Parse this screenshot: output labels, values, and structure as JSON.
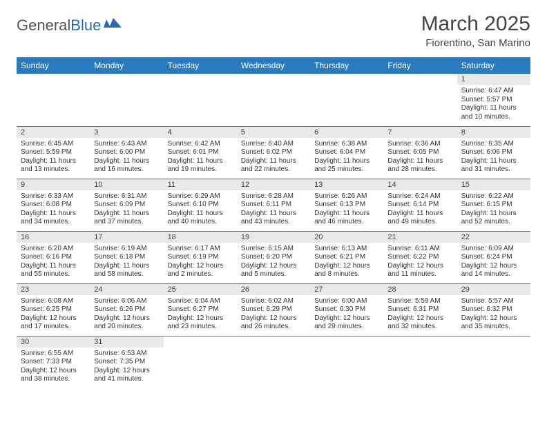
{
  "logo": {
    "text1": "General",
    "text2": "Blue"
  },
  "title": "March 2025",
  "location": "Fiorentino, San Marino",
  "colors": {
    "header_bg": "#2a7ac0",
    "header_text": "#ffffff",
    "daynum_bg": "#e8e8e8",
    "border": "#2a7ac0",
    "logo_blue": "#2a6cb4",
    "logo_gray": "#555555"
  },
  "weekdays": [
    "Sunday",
    "Monday",
    "Tuesday",
    "Wednesday",
    "Thursday",
    "Friday",
    "Saturday"
  ],
  "weeks": [
    [
      null,
      null,
      null,
      null,
      null,
      null,
      {
        "n": "1",
        "sr": "Sunrise: 6:47 AM",
        "ss": "Sunset: 5:57 PM",
        "dl": "Daylight: 11 hours and 10 minutes."
      }
    ],
    [
      {
        "n": "2",
        "sr": "Sunrise: 6:45 AM",
        "ss": "Sunset: 5:59 PM",
        "dl": "Daylight: 11 hours and 13 minutes."
      },
      {
        "n": "3",
        "sr": "Sunrise: 6:43 AM",
        "ss": "Sunset: 6:00 PM",
        "dl": "Daylight: 11 hours and 16 minutes."
      },
      {
        "n": "4",
        "sr": "Sunrise: 6:42 AM",
        "ss": "Sunset: 6:01 PM",
        "dl": "Daylight: 11 hours and 19 minutes."
      },
      {
        "n": "5",
        "sr": "Sunrise: 6:40 AM",
        "ss": "Sunset: 6:02 PM",
        "dl": "Daylight: 11 hours and 22 minutes."
      },
      {
        "n": "6",
        "sr": "Sunrise: 6:38 AM",
        "ss": "Sunset: 6:04 PM",
        "dl": "Daylight: 11 hours and 25 minutes."
      },
      {
        "n": "7",
        "sr": "Sunrise: 6:36 AM",
        "ss": "Sunset: 6:05 PM",
        "dl": "Daylight: 11 hours and 28 minutes."
      },
      {
        "n": "8",
        "sr": "Sunrise: 6:35 AM",
        "ss": "Sunset: 6:06 PM",
        "dl": "Daylight: 11 hours and 31 minutes."
      }
    ],
    [
      {
        "n": "9",
        "sr": "Sunrise: 6:33 AM",
        "ss": "Sunset: 6:08 PM",
        "dl": "Daylight: 11 hours and 34 minutes."
      },
      {
        "n": "10",
        "sr": "Sunrise: 6:31 AM",
        "ss": "Sunset: 6:09 PM",
        "dl": "Daylight: 11 hours and 37 minutes."
      },
      {
        "n": "11",
        "sr": "Sunrise: 6:29 AM",
        "ss": "Sunset: 6:10 PM",
        "dl": "Daylight: 11 hours and 40 minutes."
      },
      {
        "n": "12",
        "sr": "Sunrise: 6:28 AM",
        "ss": "Sunset: 6:11 PM",
        "dl": "Daylight: 11 hours and 43 minutes."
      },
      {
        "n": "13",
        "sr": "Sunrise: 6:26 AM",
        "ss": "Sunset: 6:13 PM",
        "dl": "Daylight: 11 hours and 46 minutes."
      },
      {
        "n": "14",
        "sr": "Sunrise: 6:24 AM",
        "ss": "Sunset: 6:14 PM",
        "dl": "Daylight: 11 hours and 49 minutes."
      },
      {
        "n": "15",
        "sr": "Sunrise: 6:22 AM",
        "ss": "Sunset: 6:15 PM",
        "dl": "Daylight: 11 hours and 52 minutes."
      }
    ],
    [
      {
        "n": "16",
        "sr": "Sunrise: 6:20 AM",
        "ss": "Sunset: 6:16 PM",
        "dl": "Daylight: 11 hours and 55 minutes."
      },
      {
        "n": "17",
        "sr": "Sunrise: 6:19 AM",
        "ss": "Sunset: 6:18 PM",
        "dl": "Daylight: 11 hours and 58 minutes."
      },
      {
        "n": "18",
        "sr": "Sunrise: 6:17 AM",
        "ss": "Sunset: 6:19 PM",
        "dl": "Daylight: 12 hours and 2 minutes."
      },
      {
        "n": "19",
        "sr": "Sunrise: 6:15 AM",
        "ss": "Sunset: 6:20 PM",
        "dl": "Daylight: 12 hours and 5 minutes."
      },
      {
        "n": "20",
        "sr": "Sunrise: 6:13 AM",
        "ss": "Sunset: 6:21 PM",
        "dl": "Daylight: 12 hours and 8 minutes."
      },
      {
        "n": "21",
        "sr": "Sunrise: 6:11 AM",
        "ss": "Sunset: 6:22 PM",
        "dl": "Daylight: 12 hours and 11 minutes."
      },
      {
        "n": "22",
        "sr": "Sunrise: 6:09 AM",
        "ss": "Sunset: 6:24 PM",
        "dl": "Daylight: 12 hours and 14 minutes."
      }
    ],
    [
      {
        "n": "23",
        "sr": "Sunrise: 6:08 AM",
        "ss": "Sunset: 6:25 PM",
        "dl": "Daylight: 12 hours and 17 minutes."
      },
      {
        "n": "24",
        "sr": "Sunrise: 6:06 AM",
        "ss": "Sunset: 6:26 PM",
        "dl": "Daylight: 12 hours and 20 minutes."
      },
      {
        "n": "25",
        "sr": "Sunrise: 6:04 AM",
        "ss": "Sunset: 6:27 PM",
        "dl": "Daylight: 12 hours and 23 minutes."
      },
      {
        "n": "26",
        "sr": "Sunrise: 6:02 AM",
        "ss": "Sunset: 6:29 PM",
        "dl": "Daylight: 12 hours and 26 minutes."
      },
      {
        "n": "27",
        "sr": "Sunrise: 6:00 AM",
        "ss": "Sunset: 6:30 PM",
        "dl": "Daylight: 12 hours and 29 minutes."
      },
      {
        "n": "28",
        "sr": "Sunrise: 5:59 AM",
        "ss": "Sunset: 6:31 PM",
        "dl": "Daylight: 12 hours and 32 minutes."
      },
      {
        "n": "29",
        "sr": "Sunrise: 5:57 AM",
        "ss": "Sunset: 6:32 PM",
        "dl": "Daylight: 12 hours and 35 minutes."
      }
    ],
    [
      {
        "n": "30",
        "sr": "Sunrise: 6:55 AM",
        "ss": "Sunset: 7:33 PM",
        "dl": "Daylight: 12 hours and 38 minutes."
      },
      {
        "n": "31",
        "sr": "Sunrise: 6:53 AM",
        "ss": "Sunset: 7:35 PM",
        "dl": "Daylight: 12 hours and 41 minutes."
      },
      null,
      null,
      null,
      null,
      null
    ]
  ]
}
